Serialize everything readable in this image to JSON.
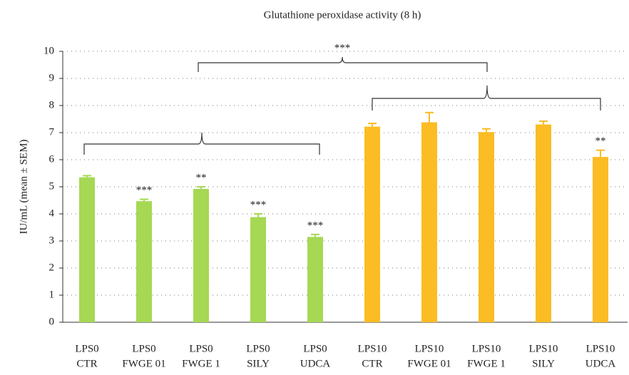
{
  "chart_data": {
    "type": "bar",
    "title": "Glutathione peroxidase activity (8 h)",
    "y_label": "IU/mL (mean ± SEM)",
    "categories": [
      [
        "LPS0",
        "CTR"
      ],
      [
        "LPS0",
        "FWGE 01"
      ],
      [
        "LPS0",
        "FWGE 1"
      ],
      [
        "LPS0",
        "SILY"
      ],
      [
        "LPS0",
        "UDCA"
      ],
      [
        "LPS10",
        "CTR"
      ],
      [
        "LPS10",
        "FWGE 01"
      ],
      [
        "LPS10",
        "FWGE 1"
      ],
      [
        "LPS10",
        "SILY"
      ],
      [
        "LPS10",
        "UDCA"
      ]
    ],
    "values": [
      5.35,
      4.47,
      4.92,
      3.88,
      3.15,
      7.22,
      7.38,
      7.02,
      7.3,
      6.1
    ],
    "errors": [
      0.06,
      0.07,
      0.08,
      0.12,
      0.09,
      0.12,
      0.36,
      0.12,
      0.12,
      0.25
    ],
    "significance": [
      null,
      "***",
      "**",
      "***",
      "***",
      null,
      null,
      null,
      null,
      "**"
    ],
    "colors": [
      "#a6d854",
      "#a6d854",
      "#a6d854",
      "#a6d854",
      "#a6d854",
      "#fbbc24",
      "#fbbc24",
      "#fbbc24",
      "#fbbc24",
      "#fbbc24"
    ],
    "group_annotation": "***",
    "ylim": [
      0,
      10
    ],
    "yticks": [
      0,
      1,
      2,
      3,
      4,
      5,
      6,
      7,
      8,
      9,
      10
    ],
    "grid": true
  }
}
